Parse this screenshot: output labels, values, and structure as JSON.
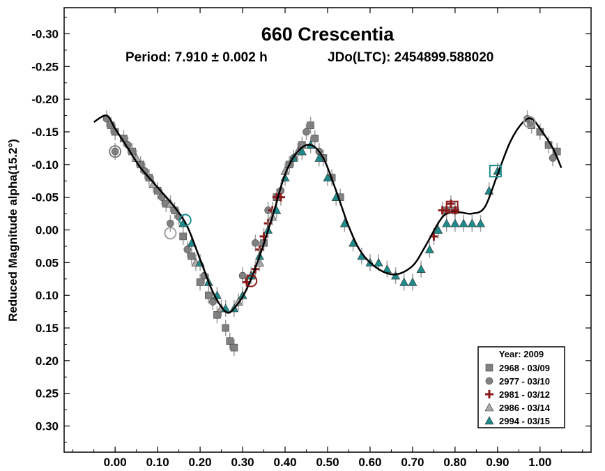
{
  "chart_data": {
    "type": "scatter",
    "title": "660 Crescentia",
    "subtitle_period": "Period: 7.910 ± 0.002 h",
    "subtitle_epoch": "JDo(LTC): 2454899.588020",
    "ylabel": "Reduced Magnitude alpha(15.2°)",
    "xlabel": "",
    "xlim": [
      -0.12,
      1.12
    ],
    "ylim": [
      -0.34,
      0.34
    ],
    "y_inverted": true,
    "grid": false,
    "x_ticks": [
      "0.00",
      "0.10",
      "0.20",
      "0.30",
      "0.40",
      "0.50",
      "0.60",
      "0.70",
      "0.80",
      "0.90",
      "1.00"
    ],
    "x_tick_values": [
      0.0,
      0.1,
      0.2,
      0.3,
      0.4,
      0.5,
      0.6,
      0.7,
      0.8,
      0.9,
      1.0
    ],
    "y_ticks": [
      "-0.30",
      "-0.25",
      "-0.20",
      "-0.15",
      "-0.10",
      "-0.05",
      "0.00",
      "0.05",
      "0.10",
      "0.15",
      "0.20",
      "0.25",
      "0.30"
    ],
    "y_tick_values": [
      -0.3,
      -0.25,
      -0.2,
      -0.15,
      -0.1,
      -0.05,
      0.0,
      0.05,
      0.1,
      0.15,
      0.2,
      0.25,
      0.3
    ],
    "legend": {
      "title": "Year: 2009",
      "placement": "bottom-right",
      "entries": [
        {
          "label": "2968 - 03/09",
          "marker": "square",
          "color": "#808080"
        },
        {
          "label": "2977 - 03/10",
          "marker": "circle",
          "color": "#808080"
        },
        {
          "label": "2981 - 03/12",
          "marker": "plus",
          "color": "#8b1a1a"
        },
        {
          "label": "2986 - 03/14",
          "marker": "triangle",
          "color": "#a9a9a9"
        },
        {
          "label": "2994 - 03/15",
          "marker": "triangle",
          "color": "#1e8a8a"
        }
      ]
    },
    "fit_curve": {
      "color": "#000000",
      "points": [
        [
          -0.05,
          -0.165
        ],
        [
          -0.02,
          -0.175
        ],
        [
          0.0,
          -0.155
        ],
        [
          0.03,
          -0.125
        ],
        [
          0.06,
          -0.095
        ],
        [
          0.1,
          -0.065
        ],
        [
          0.14,
          -0.035
        ],
        [
          0.17,
          -0.005
        ],
        [
          0.2,
          0.045
        ],
        [
          0.23,
          0.095
        ],
        [
          0.26,
          0.125
        ],
        [
          0.28,
          0.12
        ],
        [
          0.31,
          0.09
        ],
        [
          0.34,
          0.04
        ],
        [
          0.37,
          -0.02
        ],
        [
          0.4,
          -0.085
        ],
        [
          0.43,
          -0.12
        ],
        [
          0.46,
          -0.13
        ],
        [
          0.49,
          -0.11
        ],
        [
          0.52,
          -0.06
        ],
        [
          0.55,
          -0.005
        ],
        [
          0.58,
          0.035
        ],
        [
          0.62,
          0.06
        ],
        [
          0.66,
          0.068
        ],
        [
          0.7,
          0.055
        ],
        [
          0.73,
          0.025
        ],
        [
          0.76,
          -0.01
        ],
        [
          0.78,
          -0.025
        ],
        [
          0.81,
          -0.027
        ],
        [
          0.84,
          -0.025
        ],
        [
          0.87,
          -0.035
        ],
        [
          0.9,
          -0.085
        ],
        [
          0.93,
          -0.135
        ],
        [
          0.96,
          -0.165
        ],
        [
          0.98,
          -0.17
        ],
        [
          1.0,
          -0.155
        ],
        [
          1.03,
          -0.125
        ],
        [
          1.05,
          -0.095
        ]
      ]
    },
    "series": [
      {
        "name": "2968 - 03/09",
        "marker": "square",
        "color": "#808080",
        "points": [
          [
            -0.01,
            -0.16
          ],
          [
            0.0,
            -0.15
          ],
          [
            0.02,
            -0.14
          ],
          [
            0.04,
            -0.12
          ],
          [
            0.06,
            -0.1
          ],
          [
            0.08,
            -0.08
          ],
          [
            0.1,
            -0.06
          ],
          [
            0.12,
            -0.04
          ],
          [
            0.14,
            -0.03
          ],
          [
            0.16,
            0.01
          ],
          [
            0.18,
            0.04
          ],
          [
            0.2,
            0.08
          ],
          [
            0.22,
            0.1
          ],
          [
            0.24,
            0.13
          ],
          [
            0.26,
            0.15
          ],
          [
            0.27,
            0.17
          ],
          [
            0.28,
            0.18
          ],
          [
            0.35,
            0.02
          ],
          [
            0.38,
            -0.05
          ],
          [
            0.41,
            -0.1
          ],
          [
            0.44,
            -0.13
          ],
          [
            0.46,
            -0.16
          ],
          [
            0.47,
            -0.14
          ],
          [
            0.49,
            -0.11
          ],
          [
            0.51,
            -0.08
          ],
          [
            0.53,
            -0.05
          ],
          [
            0.78,
            -0.03
          ],
          [
            0.8,
            -0.03
          ],
          [
            0.98,
            -0.16
          ],
          [
            1.0,
            -0.15
          ],
          [
            1.02,
            -0.13
          ],
          [
            1.04,
            -0.12
          ]
        ]
      },
      {
        "name": "2977 - 03/10",
        "marker": "circle",
        "color": "#808080",
        "points": [
          [
            -0.02,
            -0.17
          ],
          [
            0.0,
            -0.12
          ],
          [
            0.03,
            -0.13
          ],
          [
            0.07,
            -0.09
          ],
          [
            0.11,
            -0.05
          ],
          [
            0.13,
            -0.01
          ],
          [
            0.15,
            -0.02
          ],
          [
            0.17,
            0.03
          ],
          [
            0.21,
            0.07
          ],
          [
            0.23,
            0.11
          ],
          [
            0.3,
            0.07
          ],
          [
            0.33,
            0.02
          ],
          [
            0.36,
            -0.03
          ],
          [
            0.39,
            -0.06
          ],
          [
            0.42,
            -0.11
          ],
          [
            0.45,
            -0.15
          ],
          [
            0.48,
            -0.12
          ],
          [
            0.97,
            -0.17
          ],
          [
            1.03,
            -0.11
          ]
        ]
      },
      {
        "name": "2981 - 03/12",
        "marker": "plus",
        "color": "#8b1a1a",
        "points": [
          [
            0.31,
            0.08
          ],
          [
            0.32,
            0.07
          ],
          [
            0.33,
            0.06
          ],
          [
            0.34,
            0.03
          ],
          [
            0.35,
            0.01
          ],
          [
            0.36,
            -0.01
          ],
          [
            0.37,
            -0.03
          ],
          [
            0.38,
            -0.05
          ],
          [
            0.39,
            -0.05
          ],
          [
            0.75,
            0.01
          ],
          [
            0.77,
            -0.03
          ],
          [
            0.78,
            -0.03
          ],
          [
            0.79,
            -0.04
          ],
          [
            0.8,
            -0.03
          ]
        ]
      },
      {
        "name": "2986 - 03/14",
        "marker": "triangle",
        "color": "#a9a9a9",
        "points": [
          [
            0.05,
            -0.11
          ],
          [
            0.09,
            -0.07
          ],
          [
            0.13,
            -0.04
          ],
          [
            0.19,
            0.05
          ],
          [
            0.25,
            0.12
          ],
          [
            0.29,
            0.11
          ],
          [
            0.34,
            0.05
          ],
          [
            0.37,
            -0.02
          ],
          [
            0.4,
            -0.09
          ],
          [
            0.43,
            -0.12
          ],
          [
            0.76,
            0.0
          ]
        ]
      },
      {
        "name": "2994 - 03/15",
        "marker": "triangle",
        "color": "#1e8a8a",
        "points": [
          [
            0.16,
            -0.01
          ],
          [
            0.18,
            0.02
          ],
          [
            0.2,
            0.05
          ],
          [
            0.22,
            0.08
          ],
          [
            0.24,
            0.1
          ],
          [
            0.26,
            0.12
          ],
          [
            0.28,
            0.12
          ],
          [
            0.3,
            0.1
          ],
          [
            0.32,
            0.07
          ],
          [
            0.34,
            0.04
          ],
          [
            0.36,
            0.0
          ],
          [
            0.38,
            -0.03
          ],
          [
            0.4,
            -0.08
          ],
          [
            0.42,
            -0.11
          ],
          [
            0.44,
            -0.12
          ],
          [
            0.46,
            -0.13
          ],
          [
            0.48,
            -0.11
          ],
          [
            0.5,
            -0.08
          ],
          [
            0.52,
            -0.05
          ],
          [
            0.54,
            -0.01
          ],
          [
            0.56,
            0.02
          ],
          [
            0.58,
            0.04
          ],
          [
            0.6,
            0.05
          ],
          [
            0.62,
            0.05
          ],
          [
            0.64,
            0.06
          ],
          [
            0.66,
            0.07
          ],
          [
            0.68,
            0.08
          ],
          [
            0.7,
            0.08
          ],
          [
            0.72,
            0.06
          ],
          [
            0.74,
            0.03
          ],
          [
            0.76,
            0.0
          ],
          [
            0.78,
            -0.01
          ],
          [
            0.8,
            -0.01
          ],
          [
            0.82,
            -0.01
          ],
          [
            0.84,
            -0.01
          ],
          [
            0.86,
            -0.01
          ],
          [
            0.88,
            -0.06
          ],
          [
            0.9,
            -0.09
          ]
        ]
      }
    ],
    "large_markers": [
      {
        "x": 0.165,
        "y": -0.015,
        "marker": "circle",
        "color": "#1e8a8a"
      },
      {
        "x": 0.0,
        "y": -0.12,
        "marker": "circle",
        "color": "#808080"
      },
      {
        "x": 0.13,
        "y": 0.005,
        "marker": "circle",
        "color": "#a0a0a0"
      },
      {
        "x": 0.32,
        "y": 0.078,
        "marker": "circle",
        "color": "#8b1a1a"
      },
      {
        "x": 0.793,
        "y": -0.035,
        "marker": "square",
        "color": "#8b1a1a"
      },
      {
        "x": 0.895,
        "y": -0.09,
        "marker": "square",
        "color": "#1e8a8a"
      },
      {
        "x": 0.975,
        "y": -0.165,
        "marker": "circle",
        "color": "#a0a0a0"
      }
    ]
  }
}
